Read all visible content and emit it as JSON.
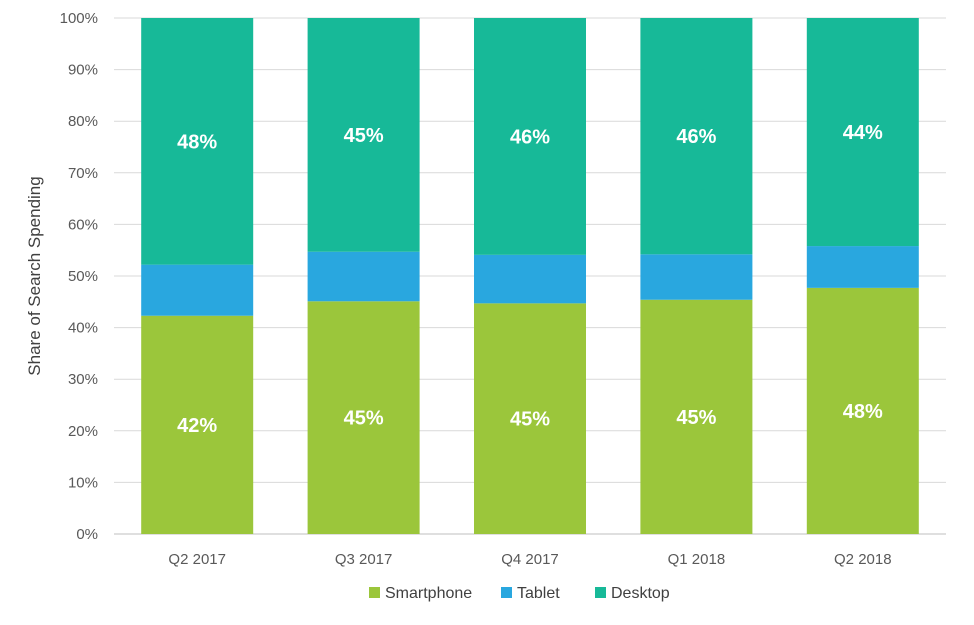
{
  "chart_data": {
    "type": "bar",
    "stacked": true,
    "ylabel": "Share of Search Spending",
    "ylim": [
      0,
      100
    ],
    "y_ticks": [
      "0%",
      "10%",
      "20%",
      "30%",
      "40%",
      "50%",
      "60%",
      "70%",
      "80%",
      "90%",
      "100%"
    ],
    "categories": [
      "Q2 2017",
      "Q3 2017",
      "Q4 2017",
      "Q1 2018",
      "Q2 2018"
    ],
    "series": [
      {
        "name": "Smartphone",
        "color": "#9bc63b",
        "values": [
          42.3,
          45.1,
          44.7,
          45.4,
          47.7
        ],
        "labels": [
          "42%",
          "45%",
          "45%",
          "45%",
          "48%"
        ]
      },
      {
        "name": "Tablet",
        "color": "#29a7df",
        "values": [
          9.9,
          9.6,
          9.4,
          8.8,
          8.1
        ],
        "labels": [
          "",
          "",
          "",
          "",
          ""
        ]
      },
      {
        "name": "Desktop",
        "color": "#17b998",
        "values": [
          47.8,
          45.3,
          45.9,
          45.8,
          44.2
        ],
        "labels": [
          "48%",
          "45%",
          "46%",
          "46%",
          "44%"
        ]
      }
    ],
    "grid": true,
    "legend_position": "bottom"
  }
}
